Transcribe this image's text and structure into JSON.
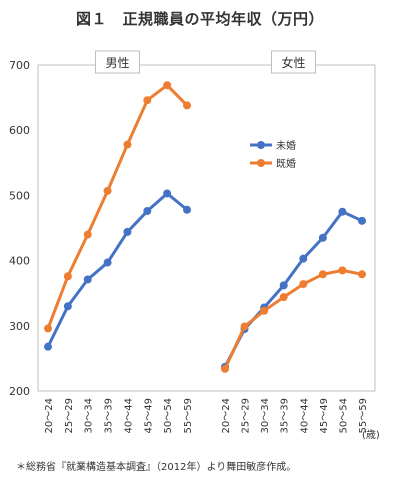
{
  "figure": {
    "title": "図１　正規職員の平均年収（万円）",
    "source_note": "＊総務省『就業構造基本調査』（2012年）より舞田敏彦作成。",
    "x_unit": "(歳)"
  },
  "chart_data": {
    "type": "line",
    "categories": [
      "20～24",
      "25～29",
      "30～34",
      "35～39",
      "40～44",
      "45～49",
      "50～54",
      "55～59"
    ],
    "ylim": [
      200,
      700
    ],
    "yticks": [
      200,
      300,
      400,
      500,
      600,
      700
    ],
    "grid": false,
    "legend_placement": "right-middle",
    "panels": [
      {
        "label": "男性",
        "series": [
          {
            "name": "未婚",
            "values": [
              268,
              330,
              371,
              397,
              444,
              476,
              503,
              478
            ]
          },
          {
            "name": "既婚",
            "values": [
              296,
              376,
              440,
              507,
              578,
              646,
              669,
              638
            ]
          }
        ]
      },
      {
        "label": "女性",
        "series": [
          {
            "name": "未婚",
            "values": [
              237,
              295,
              328,
              362,
              403,
              435,
              475,
              461
            ]
          },
          {
            "name": "既婚",
            "values": [
              234,
              299,
              323,
              344,
              364,
              379,
              385,
              379
            ]
          }
        ]
      }
    ],
    "legend": [
      "未婚",
      "既婚"
    ],
    "colors": {
      "未婚": "#4472c4",
      "既婚": "#ed7d31"
    }
  }
}
